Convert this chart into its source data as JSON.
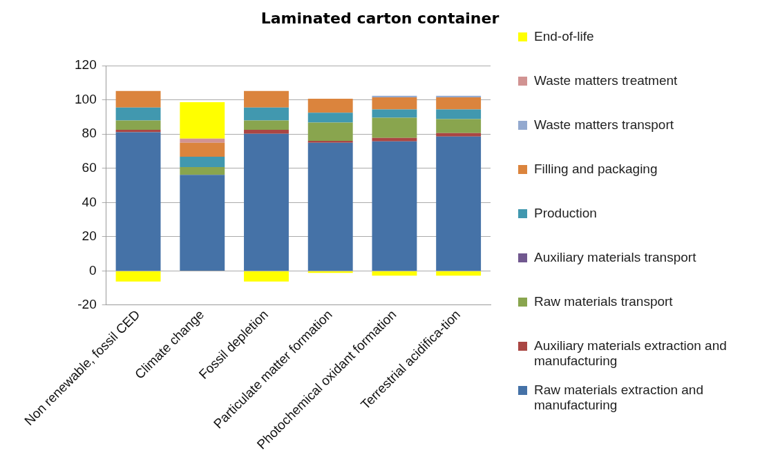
{
  "chart_data": {
    "type": "bar",
    "title": "Laminated carton container",
    "stacked": true,
    "categories": [
      "Non renewable, fossil CED",
      "Climate change",
      "Fossil depletion",
      "Particulate matter formation",
      "Photochemical oxidant formation",
      "Terrestrial acidifica-tion"
    ],
    "ylim": [
      -20,
      120
    ],
    "yticks": [
      -20,
      0,
      20,
      40,
      60,
      80,
      100,
      120
    ],
    "grid": "y",
    "legend": "right",
    "series": [
      {
        "name": "Raw materials extraction and manufacturing",
        "color": "#4572a7",
        "values": [
          81.1,
          56.1,
          80.2,
          74.9,
          75.7,
          78.5
        ]
      },
      {
        "name": "Auxiliary materials extraction and manufacturing",
        "color": "#aa4643",
        "values": [
          1.4,
          0,
          2.3,
          1.1,
          2.0,
          2.1
        ]
      },
      {
        "name": "Raw materials transport",
        "color": "#89a54e",
        "values": [
          5.4,
          4.6,
          5.4,
          10.7,
          11.8,
          8.1
        ]
      },
      {
        "name": "Auxiliary materials transport",
        "color": "#71588f",
        "values": [
          0,
          0,
          0,
          0,
          0,
          0
        ]
      },
      {
        "name": "Production",
        "color": "#4198af",
        "values": [
          7.6,
          6.0,
          7.6,
          5.8,
          4.9,
          5.7
        ]
      },
      {
        "name": "Filling and packaging",
        "color": "#db843d",
        "values": [
          9.7,
          8.2,
          9.7,
          8.1,
          7.0,
          7.0
        ]
      },
      {
        "name": "Waste matters transport",
        "color": "#93a9cf",
        "values": [
          0,
          0,
          0,
          0,
          0.9,
          0.9
        ]
      },
      {
        "name": "Waste matters treatment",
        "color": "#d19392",
        "values": [
          0,
          2.4,
          0,
          0,
          0,
          0
        ]
      },
      {
        "name": "End-of-life",
        "color": "#ffff00",
        "values": [
          -6.2,
          21.3,
          -6.2,
          -1.1,
          -2.8,
          -2.8
        ]
      }
    ]
  }
}
